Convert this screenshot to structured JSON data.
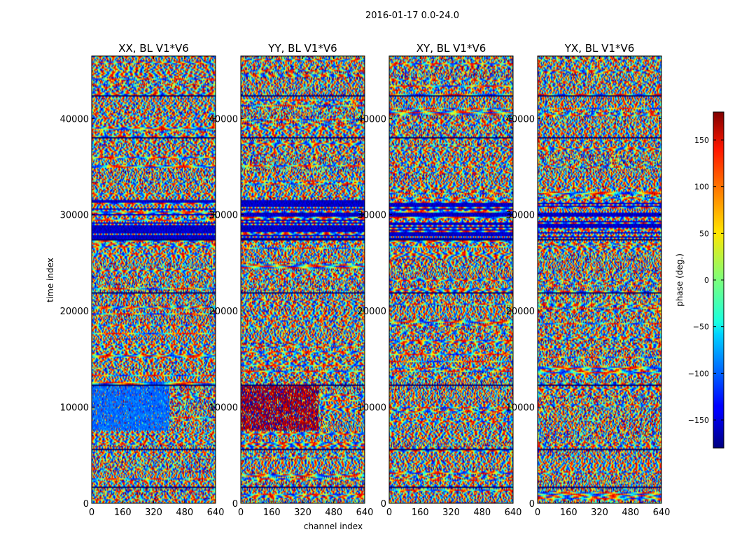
{
  "chart_data": {
    "type": "heatmap",
    "suptitle": "2016-01-17 0.0-24.0",
    "colormap": "jet",
    "xlabel": "channel index",
    "ylabel": "time index",
    "xlim": [
      0,
      640
    ],
    "ylim": [
      0,
      46500
    ],
    "xticks": [
      0,
      160,
      320,
      480,
      640
    ],
    "yticks": [
      0,
      10000,
      20000,
      30000,
      40000
    ],
    "panels": [
      {
        "title": "XX, BL V1*V6",
        "anomaly": "blue"
      },
      {
        "title": "YY, BL V1*V6",
        "anomaly": "red"
      },
      {
        "title": "XY, BL V1*V6",
        "anomaly": "none"
      },
      {
        "title": "YX, BL V1*V6",
        "anomaly": "none"
      }
    ],
    "features": {
      "dark_band_time_range": [
        27500,
        31500
      ],
      "anomaly_time_range": [
        7500,
        12300
      ],
      "anomaly_channel_range": [
        0,
        400
      ],
      "separator_rows": [
        1800,
        5700,
        12300,
        22000,
        27500,
        38000,
        42500
      ]
    },
    "colorbar": {
      "label": "phase (deg.)",
      "range": [
        -180,
        180
      ],
      "ticks": [
        -150,
        -100,
        -50,
        0,
        50,
        100,
        150
      ],
      "tick_labels": [
        "−150",
        "−100",
        "−50",
        "0",
        "50",
        "100",
        "150"
      ]
    }
  }
}
